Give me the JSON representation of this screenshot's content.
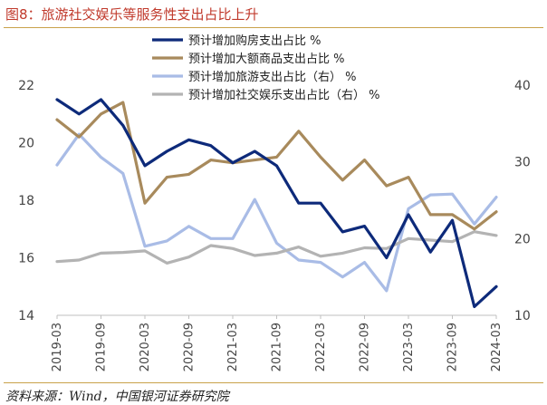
{
  "title": "图8：旅游社交娱乐等服务性支出占比上升",
  "source": "资料来源：Wind，中国银河证券研究院",
  "chart_data": {
    "type": "line",
    "x": [
      "2019-03",
      "2019-06",
      "2019-09",
      "2019-12",
      "2020-03",
      "2020-06",
      "2020-09",
      "2020-12",
      "2021-03",
      "2021-06",
      "2021-09",
      "2021-12",
      "2022-03",
      "2022-06",
      "2022-09",
      "2022-12",
      "2023-03",
      "2023-06",
      "2023-09",
      "2023-12",
      "2024-03"
    ],
    "xticks": [
      "2019-03",
      "2019-09",
      "2020-03",
      "2020-09",
      "2021-03",
      "2021-09",
      "2022-03",
      "2022-09",
      "2023-03",
      "2023-09",
      "2024-03"
    ],
    "ylim_left": [
      14,
      22
    ],
    "yticks_left": [
      "14",
      "16",
      "18",
      "20",
      "22"
    ],
    "ylim_right": [
      10,
      40
    ],
    "yticks_right": [
      "10",
      "20",
      "30",
      "40"
    ],
    "grid": false,
    "legend_position": "top",
    "series": [
      {
        "name": "预计增加购房支出占比 %",
        "axis": "left",
        "color": "#0d2a7a",
        "values": [
          21.5,
          21.0,
          21.5,
          20.6,
          19.2,
          19.7,
          20.1,
          19.9,
          19.3,
          19.7,
          19.2,
          17.9,
          17.9,
          16.9,
          17.1,
          16.0,
          17.5,
          16.2,
          17.3,
          14.3,
          15.0
        ]
      },
      {
        "name": "预计增加大额商品支出占比 %",
        "axis": "left",
        "color": "#a88a5c",
        "values": [
          20.8,
          20.2,
          21.0,
          21.4,
          17.9,
          18.8,
          18.9,
          19.4,
          19.3,
          19.4,
          19.5,
          20.4,
          19.5,
          18.7,
          19.4,
          18.5,
          18.8,
          17.5,
          17.5,
          17.0,
          17.6
        ]
      },
      {
        "name": "预计增加旅游支出占比（右） %",
        "axis": "right",
        "color": "#a9bce6",
        "values": [
          29.6,
          33.6,
          30.6,
          28.5,
          19.0,
          19.7,
          21.6,
          20.0,
          20.0,
          25.1,
          19.4,
          17.2,
          16.9,
          15.0,
          16.9,
          13.2,
          23.9,
          25.7,
          25.8,
          21.9,
          25.4
        ]
      },
      {
        "name": "预计增加社交娱乐支出占比（右） %",
        "axis": "right",
        "color": "#b3b3b3",
        "values": [
          17.0,
          17.2,
          18.1,
          18.2,
          18.4,
          16.8,
          17.6,
          19.1,
          18.7,
          17.8,
          18.1,
          18.9,
          17.7,
          18.1,
          18.8,
          18.7,
          20.0,
          19.8,
          19.6,
          20.9,
          20.4
        ]
      }
    ]
  }
}
